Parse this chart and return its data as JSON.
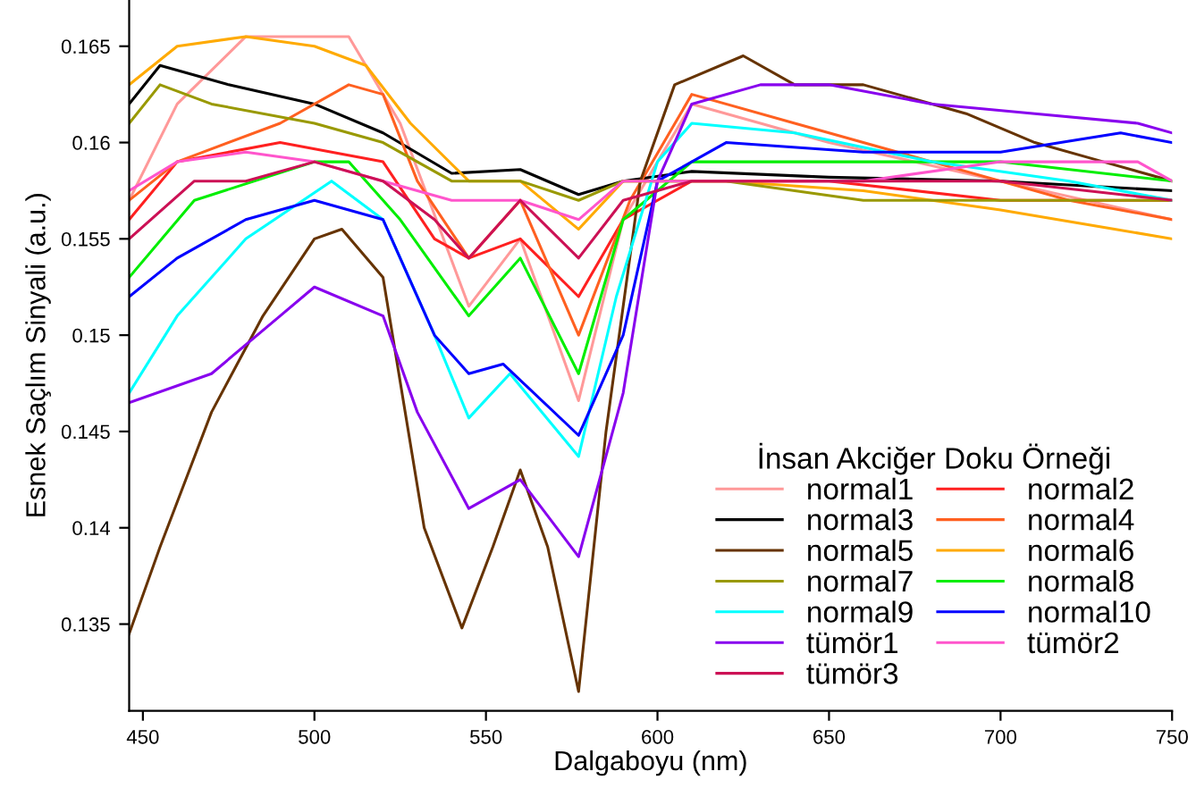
{
  "chart_data": {
    "type": "line",
    "xlabel": "Dalgaboyu (nm)",
    "ylabel": "Esnek Saçlım Sinyali (a.u.)",
    "legend_title": "İnsan Akciğer Doku Örneği",
    "legend": "bottom right",
    "grid": false,
    "marker": "none",
    "line_style": "solid",
    "xlim": [
      446,
      750
    ],
    "ylim": [
      0.1305,
      0.1674
    ],
    "xticks": [
      450,
      500,
      550,
      600,
      650,
      700,
      750
    ],
    "yticks": [
      0.135,
      0.14,
      0.145,
      0.15,
      0.155,
      0.16,
      0.165
    ],
    "series": [
      {
        "name": "normal1",
        "color": "#ff9999",
        "x": [
          446,
          460,
          480,
          500,
          510,
          525,
          545,
          560,
          577,
          590,
          610,
          650,
          700,
          750
        ],
        "values": [
          0.157,
          0.162,
          0.1655,
          0.1655,
          0.1655,
          0.161,
          0.1515,
          0.155,
          0.1466,
          0.156,
          0.162,
          0.16,
          0.158,
          0.156
        ]
      },
      {
        "name": "normal2",
        "color": "#ff2020",
        "x": [
          446,
          460,
          490,
          520,
          535,
          545,
          560,
          577,
          590,
          610,
          650,
          700,
          750
        ],
        "values": [
          0.156,
          0.159,
          0.16,
          0.159,
          0.155,
          0.154,
          0.155,
          0.152,
          0.156,
          0.158,
          0.158,
          0.157,
          0.157
        ]
      },
      {
        "name": "normal3",
        "color": "#000000",
        "x": [
          446,
          455,
          475,
          500,
          520,
          540,
          560,
          577,
          590,
          610,
          650,
          700,
          750
        ],
        "values": [
          0.162,
          0.164,
          0.163,
          0.162,
          0.1605,
          0.1584,
          0.1586,
          0.1573,
          0.158,
          0.1585,
          0.1582,
          0.158,
          0.1575
        ]
      },
      {
        "name": "normal4",
        "color": "#ff6020",
        "x": [
          446,
          460,
          490,
          510,
          520,
          530,
          545,
          560,
          577,
          592,
          610,
          640,
          680,
          720,
          750
        ],
        "values": [
          0.157,
          0.159,
          0.161,
          0.163,
          0.1625,
          0.158,
          0.154,
          0.157,
          0.15,
          0.157,
          0.1625,
          0.161,
          0.159,
          0.157,
          0.156
        ]
      },
      {
        "name": "normal5",
        "color": "#663300",
        "x": [
          446,
          455,
          470,
          485,
          500,
          508,
          520,
          532,
          543,
          552,
          560,
          568,
          577,
          585,
          595,
          605,
          625,
          640,
          660,
          690,
          710,
          730,
          750
        ],
        "values": [
          0.1345,
          0.139,
          0.146,
          0.151,
          0.155,
          0.1555,
          0.153,
          0.14,
          0.1348,
          0.139,
          0.143,
          0.139,
          0.1315,
          0.145,
          0.158,
          0.163,
          0.1645,
          0.163,
          0.163,
          0.1615,
          0.16,
          0.159,
          0.158
        ]
      },
      {
        "name": "normal6",
        "color": "#ffaa00",
        "x": [
          446,
          460,
          480,
          500,
          515,
          528,
          545,
          560,
          577,
          590,
          620,
          660,
          700,
          750
        ],
        "values": [
          0.163,
          0.165,
          0.1655,
          0.165,
          0.164,
          0.161,
          0.158,
          0.158,
          0.1555,
          0.158,
          0.158,
          0.1575,
          0.1565,
          0.155
        ]
      },
      {
        "name": "normal7",
        "color": "#999900",
        "x": [
          446,
          455,
          470,
          500,
          520,
          540,
          560,
          577,
          590,
          620,
          660,
          700,
          750
        ],
        "values": [
          0.161,
          0.163,
          0.162,
          0.161,
          0.16,
          0.158,
          0.158,
          0.157,
          0.158,
          0.158,
          0.157,
          0.157,
          0.157
        ]
      },
      {
        "name": "normal8",
        "color": "#00ee00",
        "x": [
          446,
          465,
          500,
          510,
          525,
          545,
          560,
          577,
          590,
          610,
          650,
          700,
          750
        ],
        "values": [
          0.153,
          0.157,
          0.159,
          0.159,
          0.156,
          0.151,
          0.154,
          0.148,
          0.156,
          0.159,
          0.159,
          0.159,
          0.158
        ]
      },
      {
        "name": "normal9",
        "color": "#00ffff",
        "x": [
          446,
          460,
          480,
          505,
          520,
          535,
          545,
          557,
          577,
          588,
          600,
          610,
          640,
          680,
          720,
          750
        ],
        "values": [
          0.147,
          0.151,
          0.155,
          0.158,
          0.156,
          0.15,
          0.1457,
          0.148,
          0.1437,
          0.152,
          0.159,
          0.161,
          0.1605,
          0.159,
          0.158,
          0.157
        ]
      },
      {
        "name": "normal10",
        "color": "#0000ff",
        "x": [
          446,
          460,
          480,
          500,
          520,
          535,
          545,
          555,
          577,
          590,
          600,
          620,
          660,
          700,
          735,
          750
        ],
        "values": [
          0.152,
          0.154,
          0.156,
          0.157,
          0.156,
          0.15,
          0.148,
          0.1485,
          0.1448,
          0.15,
          0.158,
          0.16,
          0.1595,
          0.1595,
          0.1605,
          0.16
        ]
      },
      {
        "name": "tümör1",
        "color": "#8800ee",
        "x": [
          446,
          470,
          490,
          500,
          520,
          530,
          545,
          560,
          577,
          590,
          600,
          610,
          630,
          650,
          680,
          710,
          740,
          750
        ],
        "values": [
          0.1465,
          0.148,
          0.151,
          0.1525,
          0.151,
          0.146,
          0.141,
          0.1425,
          0.1385,
          0.147,
          0.158,
          0.162,
          0.163,
          0.163,
          0.162,
          0.1615,
          0.161,
          0.1605
        ]
      },
      {
        "name": "tümör2",
        "color": "#ff55cc",
        "x": [
          446,
          460,
          480,
          500,
          520,
          540,
          560,
          577,
          590,
          620,
          660,
          700,
          740,
          750
        ],
        "values": [
          0.1575,
          0.159,
          0.1595,
          0.159,
          0.158,
          0.157,
          0.157,
          0.156,
          0.158,
          0.158,
          0.158,
          0.159,
          0.159,
          0.158
        ]
      },
      {
        "name": "tümör3",
        "color": "#cc1155",
        "x": [
          446,
          465,
          480,
          500,
          520,
          535,
          545,
          560,
          577,
          590,
          610,
          650,
          700,
          750
        ],
        "values": [
          0.155,
          0.158,
          0.158,
          0.159,
          0.158,
          0.156,
          0.154,
          0.157,
          0.154,
          0.157,
          0.158,
          0.158,
          0.158,
          0.157
        ]
      }
    ]
  }
}
